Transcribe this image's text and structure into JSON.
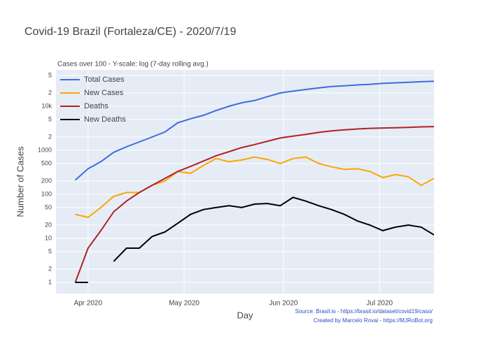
{
  "chart_data": {
    "type": "line",
    "title": "Covid-19 Brazil (Fortaleza/CE) - 2020/7/19",
    "subtitle": "Cases over 100 - Y-scale: log (7-day rolling avg.)",
    "x_label": "Day",
    "y_label": "Number of Cases",
    "annotations": [
      "Source: Brasil.io - https://brasil.io/dataset/covid19/caso/",
      "Created by Marcelo Rovai - https://MJRoBot.org"
    ],
    "log_y": true,
    "grid": true,
    "legend": "top-left",
    "x": [
      "2020-03-28",
      "2020-04-01",
      "2020-04-05",
      "2020-04-09",
      "2020-04-13",
      "2020-04-17",
      "2020-04-21",
      "2020-04-25",
      "2020-04-29",
      "2020-05-03",
      "2020-05-07",
      "2020-05-11",
      "2020-05-15",
      "2020-05-19",
      "2020-05-23",
      "2020-05-27",
      "2020-05-31",
      "2020-06-04",
      "2020-06-08",
      "2020-06-12",
      "2020-06-16",
      "2020-06-20",
      "2020-06-24",
      "2020-06-28",
      "2020-07-02",
      "2020-07-06",
      "2020-07-10",
      "2020-07-14",
      "2020-07-18"
    ],
    "xlim": [
      "2020-03-22",
      "2020-07-18"
    ],
    "xticks": [
      {
        "value": "2020-04-01",
        "label": "Apr 2020"
      },
      {
        "value": "2020-05-01",
        "label": "May 2020"
      },
      {
        "value": "2020-06-01",
        "label": "Jun 2020"
      },
      {
        "value": "2020-07-01",
        "label": "Jul 2020"
      }
    ],
    "ylim": [
      0.557,
      66800
    ],
    "yticks": [
      1,
      2,
      5,
      10,
      20,
      50,
      100,
      200,
      500,
      1000,
      {
        "value": 2000,
        "label": "2"
      },
      {
        "value": 5000,
        "label": "5"
      },
      {
        "value": 10000,
        "label": "10k"
      },
      {
        "value": 20000,
        "label": "2"
      },
      {
        "value": 50000,
        "label": "5"
      }
    ],
    "series": [
      {
        "name": "Total Cases",
        "color": "#4169e1",
        "values": [
          210,
          380,
          550,
          900,
          1200,
          1550,
          2000,
          2600,
          4200,
          5200,
          6200,
          8000,
          10000,
          12000,
          13500,
          16500,
          20000,
          22000,
          24000,
          26000,
          28000,
          29000,
          30500,
          31500,
          33000,
          34000,
          35000,
          36000,
          37000
        ]
      },
      {
        "name": "New Cases",
        "color": "#ffa500",
        "values": [
          35,
          30,
          50,
          90,
          110,
          110,
          160,
          200,
          330,
          300,
          450,
          650,
          550,
          600,
          700,
          620,
          500,
          650,
          700,
          500,
          420,
          370,
          380,
          330,
          240,
          280,
          250,
          160,
          230
        ]
      },
      {
        "name": "Deaths",
        "color": "#b22222",
        "values": [
          1,
          6,
          15,
          40,
          70,
          110,
          160,
          230,
          330,
          430,
          570,
          750,
          930,
          1150,
          1350,
          1600,
          1900,
          2100,
          2300,
          2550,
          2750,
          2900,
          3050,
          3150,
          3200,
          3250,
          3300,
          3400,
          3450
        ]
      },
      {
        "name": "New Deaths",
        "color": "#000000",
        "values": [
          1,
          1,
          null,
          3,
          6,
          6,
          11,
          14,
          22,
          35,
          45,
          50,
          55,
          50,
          60,
          62,
          55,
          85,
          70,
          55,
          45,
          35,
          25,
          20,
          15,
          18,
          20,
          18,
          12
        ]
      }
    ]
  }
}
